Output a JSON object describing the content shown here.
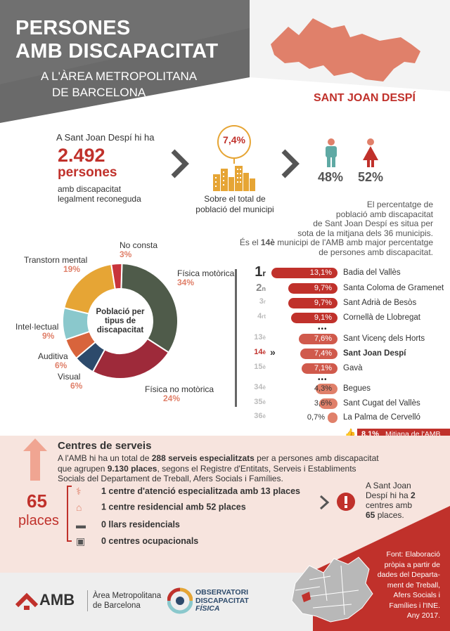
{
  "header": {
    "title_line1": "PERSONES",
    "title_line2": "AMB DISCAPACITAT",
    "subtitle_line1": "A L'ÀREA METROPOLITANA",
    "subtitle_line2": "DE BARCELONA",
    "municipality": "SANT JOAN DESPÍ"
  },
  "summary": {
    "intro": "A Sant Joan Despí hi ha",
    "count": "2.492",
    "count_unit": "persones",
    "desc_line1": "amb discapacitat",
    "desc_line2": "legalment reconeguda",
    "percent": "7,4%",
    "percent_desc_line1": "Sobre el total de",
    "percent_desc_line2": "població del municipi",
    "male_pct": "48%",
    "female_pct": "52%"
  },
  "ranking_note": {
    "line1": "El percentatge de",
    "line2": "població amb discapacitat",
    "line3": "de Sant Joan Despí es situa per",
    "line4": "sota de la mitjana dels 36 municipis.",
    "line5_pre": "És el ",
    "line5_bold": "14è",
    "line5_post": " municipi de l'AMB amb major percentatge",
    "line6": "de persones amb discapacitat."
  },
  "donut": {
    "center_label_line1": "Població per",
    "center_label_line2": "tipus de",
    "center_label_line3": "discapacitat"
  },
  "chart_data": {
    "type": "pie",
    "title": "Població per tipus de discapacitat",
    "categories": [
      "Física motòrica",
      "Física no motòrica",
      "Visual",
      "Auditiva",
      "Intel·lectual",
      "Transtorn mental",
      "No consta"
    ],
    "values": [
      34,
      24,
      6,
      6,
      9,
      19,
      3
    ],
    "labels": [
      "34%",
      "24%",
      "6%",
      "6%",
      "9%",
      "19%",
      "3%"
    ],
    "colors": [
      "#4f5b4a",
      "#9e2a3a",
      "#2d4a6b",
      "#d8643c",
      "#8ac8cc",
      "#e6a535",
      "#c8343b"
    ]
  },
  "ranking": [
    {
      "rank_num": "1",
      "rank_suffix": "r",
      "value": "13,1%",
      "pct": 13.1,
      "name": "Badia del Vallès",
      "color": "#c0312b"
    },
    {
      "rank_num": "2",
      "rank_suffix": "n",
      "value": "9,7%",
      "pct": 9.7,
      "name": "Santa Coloma de Gramenet",
      "color": "#c0312b"
    },
    {
      "rank_num": "3",
      "rank_suffix": "r",
      "value": "9,7%",
      "pct": 9.7,
      "name": "Sant Adrià de Besòs",
      "color": "#c0312b"
    },
    {
      "rank_num": "4",
      "rank_suffix": "rt",
      "value": "9,1%",
      "pct": 9.1,
      "name": "Cornellà de Llobregat",
      "color": "#c0312b"
    },
    {
      "rank_num": "13",
      "rank_suffix": "è",
      "value": "7,6%",
      "pct": 7.6,
      "name": "Sant Vicenç dels Horts",
      "color": "#d05a4c"
    },
    {
      "rank_num": "14",
      "rank_suffix": "è",
      "value": "7,4%",
      "pct": 7.4,
      "name": "Sant Joan Despí",
      "color": "#d05a4c"
    },
    {
      "rank_num": "15",
      "rank_suffix": "è",
      "value": "7,1%",
      "pct": 7.1,
      "name": "Gavà",
      "color": "#d05a4c"
    },
    {
      "rank_num": "34",
      "rank_suffix": "è",
      "value": "4,3%",
      "pct": 4.3,
      "name": "Begues",
      "color": "#e0806a"
    },
    {
      "rank_num": "35",
      "rank_suffix": "è",
      "value": "3,6%",
      "pct": 3.6,
      "name": "Sant Cugat del Vallès",
      "color": "#e0806a"
    },
    {
      "rank_num": "36",
      "rank_suffix": "è",
      "value": "0,7%",
      "pct": 0.7,
      "name": "La Palma de Cervelló",
      "color": "#e0806a"
    }
  ],
  "ranking_ellipsis": "•••",
  "average": {
    "value": "8,1%",
    "label": "Mitjana de l'AMB"
  },
  "services": {
    "heading": "Centres de serveis",
    "p1_pre": "A l'AMB hi ha un total de ",
    "p1_bold1": "288 serveis especialitzats",
    "p1_mid": " per a persones amb discapacitat",
    "p2_pre": "que agrupen ",
    "p2_bold": "9.130 places",
    "p2_post": ", segons el Registre d'Entitats, Serveis i Establiments",
    "p3": "Socials del Departament de Treball, Afers Socials i Famílies.",
    "places_num": "65",
    "places_label": "places",
    "items": [
      {
        "icon": "doctor-icon",
        "bold": "1",
        "text": " centre d'atenció especialitzada amb ",
        "bold2": "13 places"
      },
      {
        "icon": "house-icon",
        "bold": "1",
        "text": " centre residencial amb ",
        "bold2": "52 places"
      },
      {
        "icon": "bed-icon",
        "bold": "0",
        "text": " llars residencials",
        "bold2": ""
      },
      {
        "icon": "briefcase-icon",
        "bold": "0",
        "text": " centres ocupacionals",
        "bold2": ""
      }
    ],
    "alert_line1": "A Sant Joan",
    "alert_line2_pre": "Despí hi ha ",
    "alert_line2_bold": "2",
    "alert_line3": "centres amb",
    "alert_line4_bold": "65",
    "alert_line4_post": " places."
  },
  "footer": {
    "amb_logo": "AMB",
    "amb_name_line1": "Àrea Metropolitana",
    "amb_name_line2": "de Barcelona",
    "obs_line1": "OBSERVATORI",
    "obs_line2": "DISCAPACITAT",
    "obs_line3": "FÍSICA",
    "source_lines": [
      "Font: Elaboració",
      "pròpia a partir de",
      "dades del Departa-",
      "ment de Treball,",
      "Afers Socials i",
      "Famílies i l'INE.",
      "Any 2017."
    ]
  }
}
